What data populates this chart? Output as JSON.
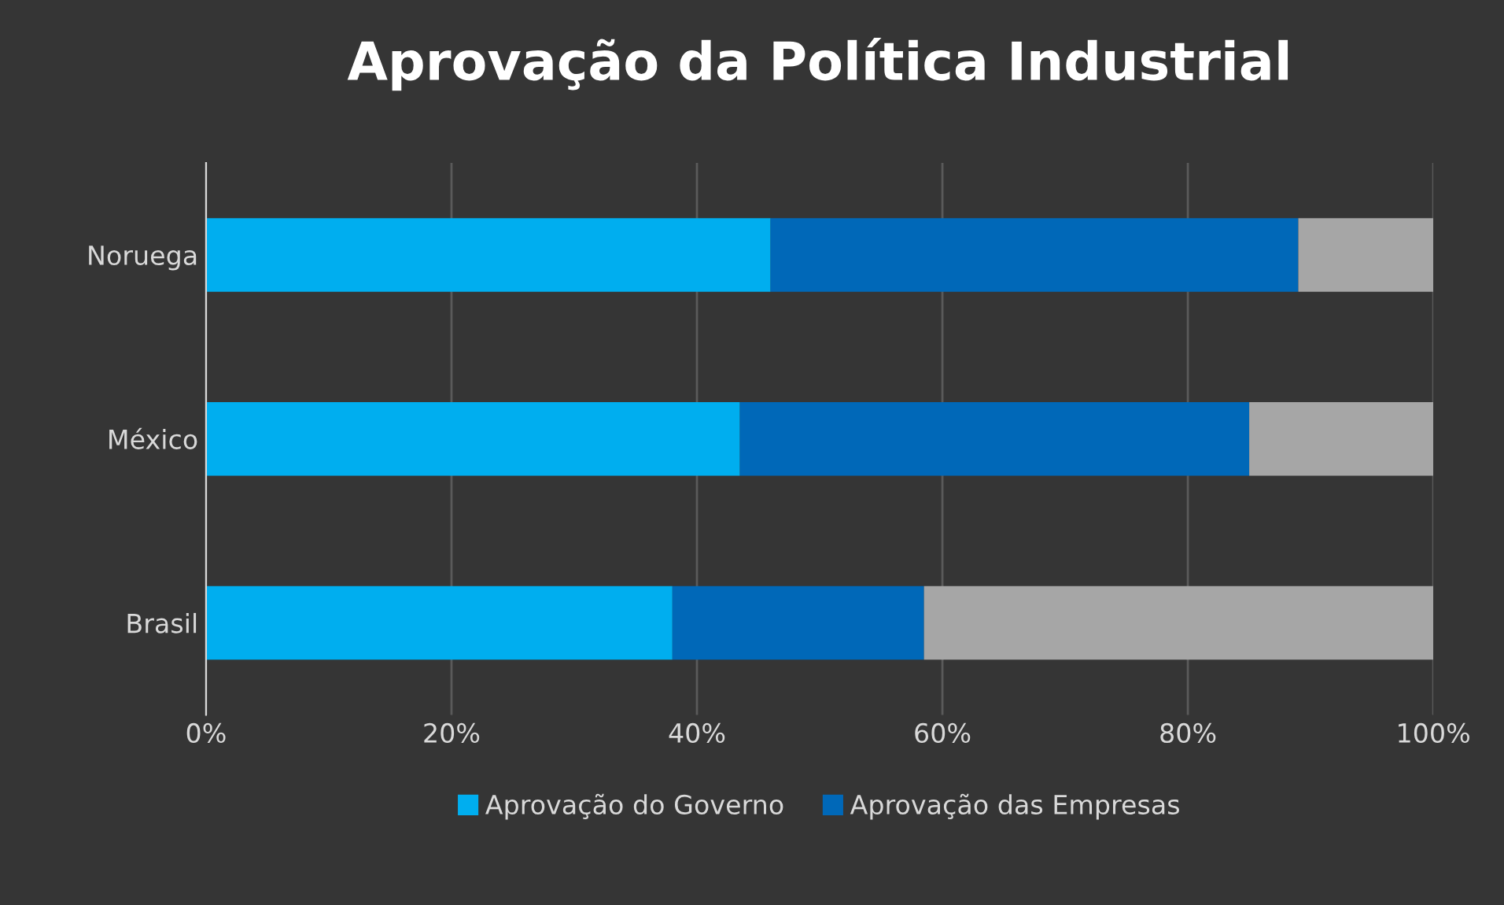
{
  "chart_data": {
    "type": "bar",
    "orientation": "horizontal",
    "stacked": true,
    "title": "Aprovação da Política Industrial",
    "categories": [
      "Noruega",
      "México",
      "Brasil"
    ],
    "series": [
      {
        "name": "Aprovação do Governo",
        "color": "#00aeef",
        "values": [
          46,
          43.5,
          38
        ]
      },
      {
        "name": "Aprovação das Empresas",
        "color": "#0068b8",
        "values": [
          43,
          41.5,
          20.5
        ]
      },
      {
        "color": "#a6a6a6",
        "values": [
          11,
          15,
          41.5
        ]
      }
    ],
    "xlim": [
      0,
      100
    ],
    "xticks": [
      {
        "value": 0,
        "label": "0%"
      },
      {
        "value": 20,
        "label": "20%"
      },
      {
        "value": 40,
        "label": "40%"
      },
      {
        "value": 60,
        "label": "60%"
      },
      {
        "value": 80,
        "label": "80%"
      },
      {
        "value": 100,
        "label": "100%"
      }
    ],
    "grid": "x",
    "legend": "bottom"
  }
}
